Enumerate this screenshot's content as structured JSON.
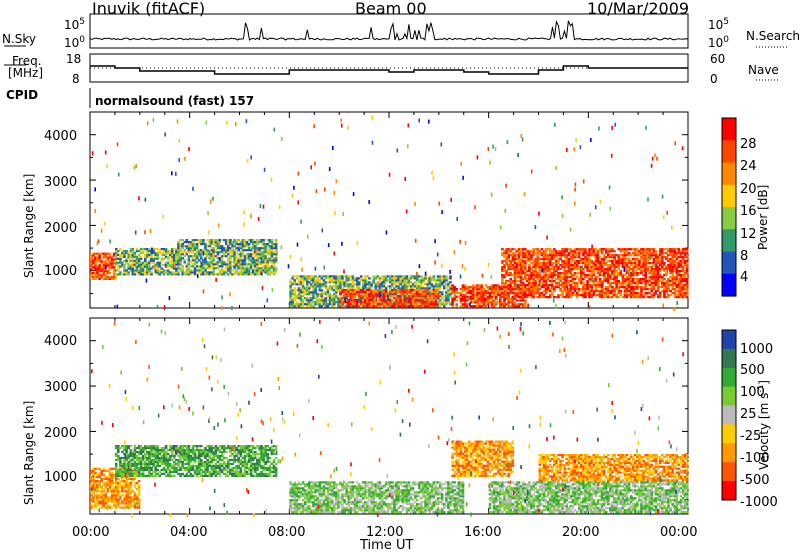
{
  "header": {
    "station": "Inuvik (fitACF)",
    "beam": "Beam 00",
    "date": "10/Mar/2009"
  },
  "top_panels": {
    "nsky_label": "N.Sky",
    "nsky_ticks": [
      "10^5",
      "10^0"
    ],
    "nsearch_label": "N.Search",
    "nsearch_ticks": [
      "10^5",
      "10^0"
    ],
    "freq_label": "Freq.",
    "freq_unit": "[MHz]",
    "freq_ticks": [
      "18",
      "8"
    ],
    "nave_label": "Nave",
    "nave_ticks": [
      "60",
      "0"
    ],
    "cpid_label": "CPID",
    "cpid_value": "normalsound (fast) 157"
  },
  "power_panel": {
    "ylabel": "Slant Range [km]",
    "colorbar_label": "Power [dB]",
    "colorbar_ticks": [
      "28",
      "24",
      "20",
      "16",
      "12",
      "8",
      "4"
    ],
    "colors": [
      "#ff0000",
      "#ff4400",
      "#ff8800",
      "#ffcc00",
      "#88cc44",
      "#339966",
      "#2255bb",
      "#0000ff"
    ]
  },
  "velocity_panel": {
    "ylabel": "Slant Range [km]",
    "colorbar_label": "Velocity [m s^-1]",
    "colorbar_ticks": [
      "1000",
      "500",
      "100",
      "25",
      "-25",
      "-100",
      "-500",
      "-1000"
    ],
    "colors": [
      "#2244aa",
      "#337755",
      "#33aa33",
      "#77cc33",
      "#bbbbbb",
      "#ffcc00",
      "#ff9900",
      "#ff5500",
      "#ff0000"
    ]
  },
  "xaxis": {
    "label": "Time UT",
    "ticks": [
      "00:00",
      "04:00",
      "08:00",
      "12:00",
      "16:00",
      "20:00",
      "00:00"
    ]
  },
  "chart_data": [
    {
      "type": "heatmap",
      "title": "Power",
      "xlabel": "Time UT",
      "ylabel": "Slant Range [km]",
      "xlim": [
        0,
        24
      ],
      "ylim": [
        180,
        4500
      ],
      "yticks": [
        1000,
        2000,
        3000,
        4000
      ],
      "colorbar": {
        "label": "Power [dB]",
        "ticks": [
          4,
          8,
          12,
          16,
          20,
          24,
          28
        ]
      },
      "regions": [
        {
          "t0": 0.0,
          "t1": 1.0,
          "r0": 800,
          "r1": 1400,
          "level": "high"
        },
        {
          "t0": 1.0,
          "t1": 3.5,
          "r0": 900,
          "r1": 1500,
          "level": "medium"
        },
        {
          "t0": 3.5,
          "t1": 7.5,
          "r0": 900,
          "r1": 1700,
          "level": "medium"
        },
        {
          "t0": 8.0,
          "t1": 14.5,
          "r0": 200,
          "r1": 900,
          "level": "medium"
        },
        {
          "t0": 10.0,
          "t1": 14.0,
          "r0": 200,
          "r1": 600,
          "level": "high"
        },
        {
          "t0": 14.5,
          "t1": 17.5,
          "r0": 200,
          "r1": 700,
          "level": "high"
        },
        {
          "t0": 16.5,
          "t1": 24.0,
          "r0": 400,
          "r1": 1500,
          "level": "high"
        }
      ]
    },
    {
      "type": "heatmap",
      "title": "Velocity",
      "xlabel": "Time UT",
      "ylabel": "Slant Range [km]",
      "xlim": [
        0,
        24
      ],
      "ylim": [
        180,
        4500
      ],
      "yticks": [
        1000,
        2000,
        3000,
        4000
      ],
      "colorbar": {
        "label": "Velocity [m s^-1]",
        "ticks": [
          -1000,
          -500,
          -100,
          -25,
          25,
          100,
          500,
          1000
        ]
      },
      "regions": [
        {
          "t0": 0.0,
          "t1": 2.0,
          "r0": 300,
          "r1": 1200,
          "level": "-100"
        },
        {
          "t0": 1.0,
          "t1": 7.5,
          "r0": 1000,
          "r1": 1700,
          "level": "500"
        },
        {
          "t0": 8.0,
          "t1": 15.0,
          "r0": 200,
          "r1": 900,
          "level": "100"
        },
        {
          "t0": 14.5,
          "t1": 17.0,
          "r0": 1000,
          "r1": 1800,
          "level": "-100"
        },
        {
          "t0": 16.0,
          "t1": 24.0,
          "r0": 200,
          "r1": 900,
          "level": "100"
        },
        {
          "t0": 18.0,
          "t1": 24.0,
          "r0": 900,
          "r1": 1500,
          "level": "-100"
        }
      ]
    }
  ]
}
